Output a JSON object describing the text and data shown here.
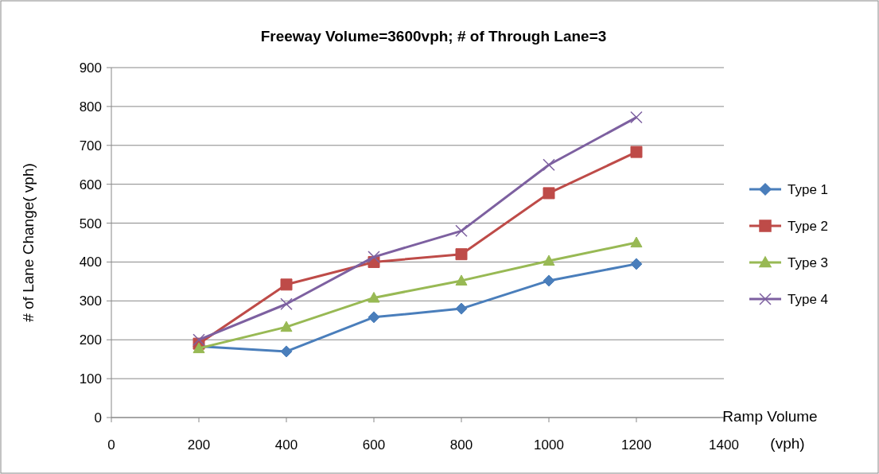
{
  "chart_data": {
    "type": "line",
    "title": "Freeway Volume=3600vph; # of Through Lane=3",
    "xlabel": "Ramp Volume (vph)",
    "ylabel": "# of Lane Change( vph)",
    "x": [
      200,
      400,
      600,
      800,
      1000,
      1200
    ],
    "series": [
      {
        "name": "Type 1",
        "color": "#4a7ebb",
        "marker": "diamond",
        "values": [
          183,
          170,
          258,
          280,
          352,
          395
        ]
      },
      {
        "name": "Type 2",
        "color": "#be4b48",
        "marker": "square",
        "values": [
          190,
          342,
          400,
          420,
          577,
          683
        ]
      },
      {
        "name": "Type 3",
        "color": "#98b954",
        "marker": "triangle",
        "values": [
          178,
          233,
          308,
          352,
          403,
          450
        ]
      },
      {
        "name": "Type 4",
        "color": "#7d60a0",
        "marker": "cross",
        "values": [
          200,
          292,
          413,
          480,
          650,
          772
        ]
      }
    ],
    "xlim": [
      0,
      1400
    ],
    "xticks": [
      0,
      200,
      400,
      600,
      800,
      1000,
      1200,
      1400
    ],
    "ylim": [
      0,
      900
    ],
    "yticks": [
      0,
      100,
      200,
      300,
      400,
      500,
      600,
      700,
      800,
      900
    ],
    "grid": "y",
    "legend": "right",
    "line_style": "solid"
  }
}
